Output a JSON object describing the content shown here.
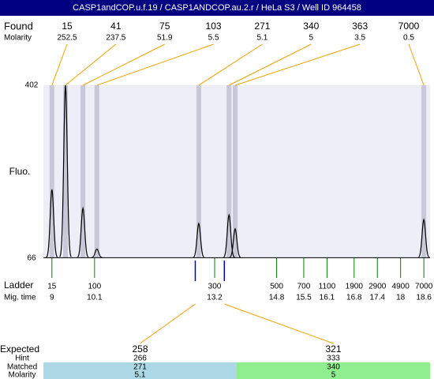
{
  "header": {
    "title": "CASP1andCOP.u.f.19 / CASP1ANDCOP.au.2.r / HeLa S3 / Well ID 964458"
  },
  "chart_data": {
    "type": "electropherogram",
    "xlim": [
      8.78,
      18.76
    ],
    "ylim": [
      66,
      402
    ],
    "yticks": [
      66,
      402
    ],
    "y_label": "Fluo.",
    "baseline": 67,
    "found": {
      "label": "Found",
      "molarity_label": "Molarity",
      "peaks": [
        {
          "size": 15,
          "molarity": 252.5,
          "time": 9.0,
          "height": 199.5
        },
        {
          "size": 41,
          "molarity": 237.5,
          "time": 9.35,
          "height": 402
        },
        {
          "size": 75,
          "molarity": 51.9,
          "time": 9.8,
          "height": 163
        },
        {
          "size": 103,
          "molarity": 5.5,
          "time": 10.16,
          "height": 84
        },
        {
          "size": 271,
          "molarity": 5.1,
          "time": 12.79,
          "height": 133.5
        },
        {
          "size": 340,
          "molarity": 5,
          "time": 13.57,
          "height": 150
        },
        {
          "size": 363,
          "molarity": 3.5,
          "time": 13.73,
          "height": 123
        },
        {
          "size": 7000,
          "molarity": 0.5,
          "time": 18.6,
          "height": 141
        }
      ]
    },
    "ladder": {
      "label": "Ladder",
      "time_label": "Mig. time",
      "sizes": [
        15,
        100,
        300,
        500,
        700,
        1100,
        1900,
        2900,
        4900,
        7000
      ],
      "times": [
        9,
        10.1,
        13.2,
        14.8,
        15.5,
        16.1,
        16.8,
        17.4,
        18,
        18.6
      ]
    },
    "expected": {
      "label": "Expected",
      "hint_label": "Hint",
      "matched_label": "Matched",
      "molarity_label": "Molarity",
      "items": [
        {
          "expected": 258,
          "hint": 266,
          "matched": 271,
          "molarity": 5.1,
          "time": 12.7,
          "color": "#add8e6"
        },
        {
          "expected": 321,
          "hint": 333,
          "matched": 340,
          "molarity": 5,
          "time": 13.45,
          "color": "#90ee90"
        }
      ]
    }
  }
}
